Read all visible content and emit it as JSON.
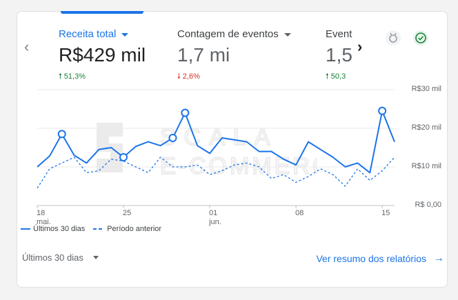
{
  "metrics": [
    {
      "label": "Receita total",
      "value": "R$429 mil",
      "delta": "51,3%",
      "direction": "up"
    },
    {
      "label": "Contagem de eventos",
      "value": "1,7 mi",
      "delta": "2,6%",
      "direction": "down"
    },
    {
      "label": "Event",
      "value": "1,5",
      "delta": "50,3",
      "direction": "up"
    }
  ],
  "chart_data": {
    "type": "line",
    "x": [
      "18 mai.",
      "19",
      "20",
      "21",
      "22",
      "23",
      "24",
      "25",
      "26",
      "27",
      "28",
      "29",
      "30",
      "31",
      "01 jun.",
      "02",
      "03",
      "04",
      "05",
      "06",
      "07",
      "08",
      "09",
      "10",
      "11",
      "12",
      "13",
      "14",
      "15",
      "16"
    ],
    "x_tick_labels": [
      {
        "index": 0,
        "line1": "18",
        "line2": "mai."
      },
      {
        "index": 7,
        "line1": "25",
        "line2": ""
      },
      {
        "index": 14,
        "line1": "01",
        "line2": "jun."
      },
      {
        "index": 21,
        "line1": "08",
        "line2": ""
      },
      {
        "index": 28,
        "line1": "15",
        "line2": ""
      }
    ],
    "ylim": [
      0,
      30000
    ],
    "y_tick_labels": [
      "R$30 mil",
      "R$20 mil",
      "R$10 mil",
      "R$ 0,00"
    ],
    "y_ticks": [
      30000,
      20000,
      10000,
      0
    ],
    "series": [
      {
        "name": "Últimos 30 dias",
        "style": "solid",
        "values": [
          10000,
          12800,
          18500,
          13000,
          11000,
          14500,
          15000,
          12500,
          15300,
          16500,
          15500,
          17500,
          24000,
          15500,
          13500,
          17500,
          17000,
          16500,
          14000,
          14000,
          12000,
          10500,
          16500,
          14500,
          12500,
          10000,
          11000,
          8500,
          24500,
          16500
        ],
        "highlight": [
          2,
          7,
          11,
          12,
          28
        ]
      },
      {
        "name": "Período anterior",
        "style": "dashed",
        "values": [
          4500,
          9500,
          11000,
          12500,
          8500,
          9000,
          12000,
          11500,
          10000,
          8500,
          12500,
          10000,
          10000,
          10500,
          8000,
          9000,
          10500,
          11000,
          10000,
          7000,
          8000,
          6000,
          7500,
          9500,
          8000,
          5000,
          9500,
          6500,
          9000,
          12500
        ]
      }
    ]
  },
  "legend": [
    {
      "label": "Últimos 30 dias",
      "style": "solid"
    },
    {
      "label": "Período anterior",
      "style": "dashed"
    }
  ],
  "footer": {
    "period": "Últimos 30 dias",
    "link": "Ver resumo dos relatórios"
  },
  "watermark": {
    "line1": "SCALA",
    "line2": "E-COMMERCE"
  },
  "colors": {
    "accent": "#1a73e8",
    "up": "#188038",
    "down": "#d93025"
  }
}
